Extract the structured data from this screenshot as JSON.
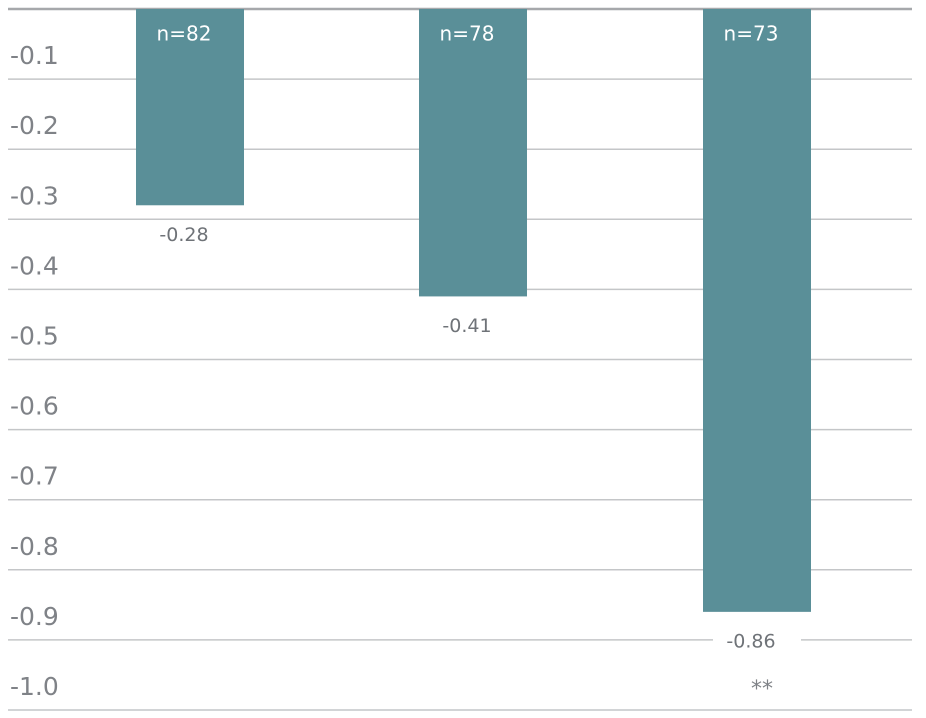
{
  "chart_data": {
    "type": "bar",
    "title": "",
    "xlabel": "",
    "ylabel": "",
    "ylim": [
      -1.0,
      0.0
    ],
    "yticks": [
      -0.1,
      -0.2,
      -0.3,
      -0.4,
      -0.5,
      -0.6,
      -0.7,
      -0.8,
      -0.9,
      -1.0
    ],
    "ytick_labels": [
      "-0.1",
      "-0.2",
      "-0.3",
      "-0.4",
      "-0.5",
      "-0.6",
      "-0.7",
      "-0.8",
      "-0.9",
      "-1.0"
    ],
    "grid": true,
    "legend": "none",
    "bar_color": "#5a8f98",
    "categories": [
      "",
      "",
      ""
    ],
    "values": [
      -0.28,
      -0.41,
      -0.86
    ],
    "value_labels": [
      "-0.28",
      "-0.41",
      "-0.86"
    ],
    "n_labels": [
      "n=82",
      "n=78",
      "n=73"
    ],
    "significance": [
      "",
      "",
      "**"
    ]
  }
}
